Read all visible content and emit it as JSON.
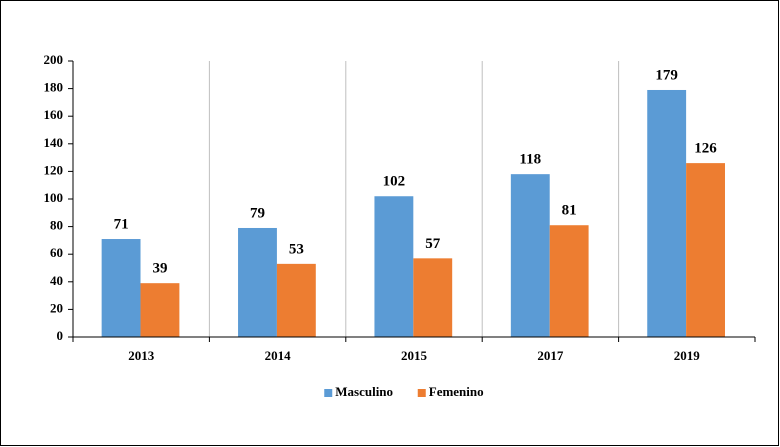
{
  "chart_data": {
    "type": "bar",
    "categories": [
      "2013",
      "2014",
      "2015",
      "2017",
      "2019"
    ],
    "series": [
      {
        "name": "Masculino",
        "color": "#5b9bd5",
        "values": [
          71,
          79,
          102,
          118,
          179
        ]
      },
      {
        "name": "Femenino",
        "color": "#ed7d31",
        "values": [
          39,
          53,
          57,
          81,
          126
        ]
      }
    ],
    "ylim": [
      0,
      200
    ],
    "yticks": [
      0,
      20,
      40,
      60,
      80,
      100,
      120,
      140,
      160,
      180,
      200
    ],
    "grid": true,
    "legend": "bottom"
  }
}
